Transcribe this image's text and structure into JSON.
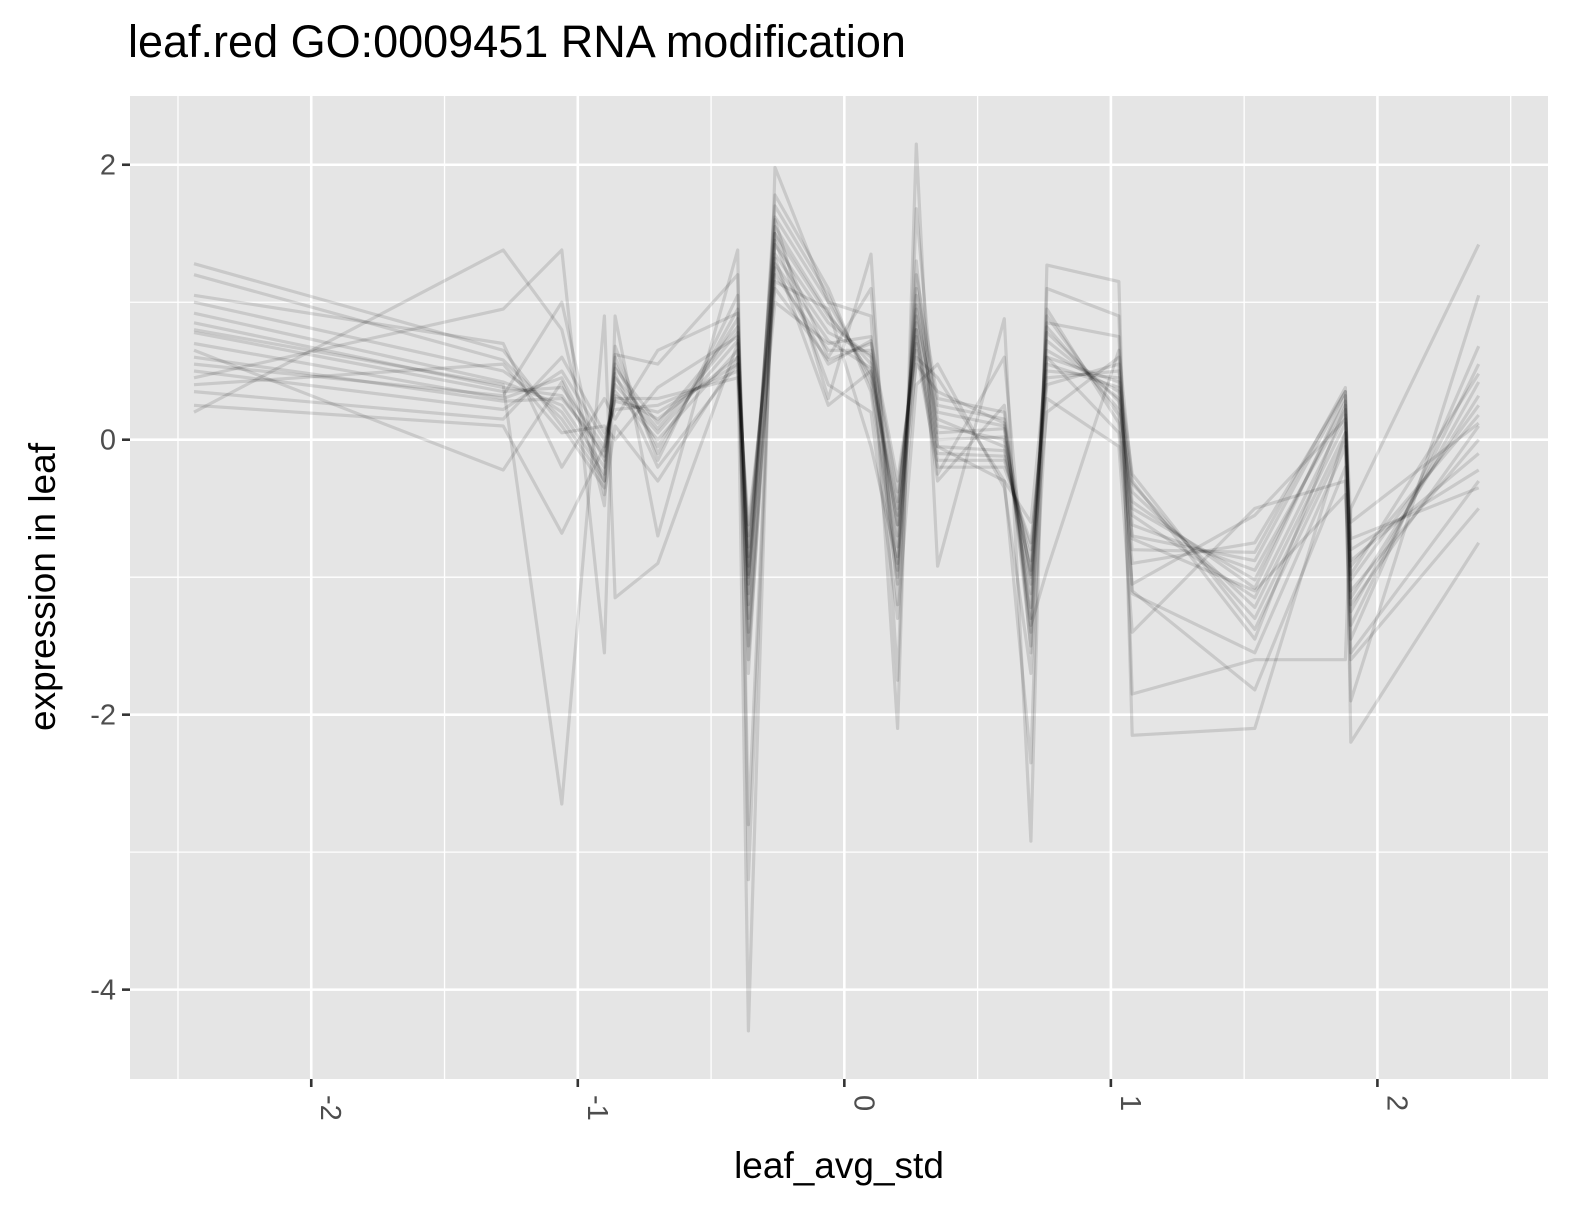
{
  "chart_data": {
    "type": "line",
    "title": "leaf.red GO:0009451 RNA modification",
    "xlabel": "leaf_avg_std",
    "ylabel": "expression in leaf",
    "xlim": [
      -2.68,
      2.64
    ],
    "ylim": [
      -4.65,
      2.5
    ],
    "x_ticks": [
      -2,
      -1,
      0,
      1,
      2
    ],
    "x_tick_labels": [
      "-2",
      "-1",
      "0",
      "1",
      "2"
    ],
    "y_ticks": [
      2,
      0,
      -2,
      -4
    ],
    "y_tick_labels": [
      "2",
      "0",
      "-2",
      "-4"
    ],
    "grid": true,
    "panel_background": "#e5e5e5",
    "grid_color": "#ffffff",
    "line_color": "#000000",
    "line_alpha": 0.12,
    "x": [
      -2.44,
      -1.28,
      -1.06,
      -0.9,
      -0.86,
      -0.7,
      -0.4,
      -0.36,
      -0.26,
      -0.06,
      0.1,
      0.2,
      0.27,
      0.35,
      0.6,
      0.7,
      0.76,
      1.03,
      1.08,
      1.54,
      1.88,
      1.9,
      2.38
    ],
    "series": [
      {
        "values": [
          0.85,
          0.38,
          0.32,
          -0.12,
          0.45,
          0.08,
          0.78,
          -0.98,
          1.5,
          0.9,
          0.55,
          -0.62,
          0.95,
          0.1,
          0.0,
          -1.12,
          0.72,
          0.3,
          -0.5,
          -1.02,
          0.28,
          -1.02,
          0.25
        ]
      },
      {
        "values": [
          0.92,
          0.42,
          0.25,
          -0.2,
          0.52,
          0.12,
          0.82,
          -1.05,
          1.42,
          0.85,
          0.6,
          -0.78,
          0.98,
          0.05,
          0.08,
          -1.22,
          0.65,
          0.35,
          -0.62,
          -0.95,
          0.22,
          -1.15,
          0.32
        ]
      },
      {
        "values": [
          0.78,
          0.35,
          0.38,
          -0.05,
          0.4,
          0.05,
          0.72,
          -0.92,
          1.55,
          0.92,
          0.48,
          -0.55,
          0.9,
          0.15,
          -0.05,
          -1.05,
          0.78,
          0.28,
          -0.45,
          -1.08,
          0.32,
          -0.92,
          0.18
        ]
      },
      {
        "values": [
          0.7,
          0.3,
          0.45,
          -0.15,
          0.35,
          0.0,
          0.65,
          -0.85,
          1.35,
          0.78,
          0.62,
          -0.7,
          0.85,
          0.0,
          0.02,
          -0.98,
          0.6,
          0.42,
          -0.55,
          -1.15,
          0.18,
          -1.1,
          0.0
        ]
      },
      {
        "values": [
          1.0,
          0.5,
          0.2,
          -0.25,
          0.55,
          -0.05,
          0.88,
          -1.12,
          1.62,
          1.0,
          0.45,
          -0.85,
          1.05,
          0.2,
          0.1,
          -1.3,
          0.82,
          0.22,
          -0.7,
          -0.88,
          0.35,
          -1.25,
          0.42
        ]
      },
      {
        "values": [
          0.6,
          0.28,
          0.3,
          -0.08,
          0.32,
          0.15,
          0.6,
          -0.78,
          1.28,
          0.72,
          0.52,
          -0.5,
          0.8,
          -0.05,
          -0.08,
          -0.95,
          0.55,
          0.38,
          -0.38,
          -1.22,
          0.12,
          -0.88,
          -0.1
        ]
      },
      {
        "values": [
          1.2,
          0.58,
          0.15,
          -0.3,
          0.6,
          -0.1,
          0.95,
          -1.2,
          1.7,
          1.05,
          0.4,
          -0.95,
          1.1,
          0.25,
          0.15,
          -1.4,
          0.9,
          0.18,
          -0.8,
          -0.82,
          0.38,
          -1.35,
          0.55
        ]
      },
      {
        "values": [
          0.5,
          0.22,
          0.5,
          0.0,
          0.28,
          0.2,
          0.55,
          -0.7,
          1.2,
          0.65,
          0.65,
          -0.45,
          0.75,
          -0.1,
          -0.12,
          -0.88,
          0.5,
          0.45,
          -0.32,
          -1.3,
          0.05,
          -0.8,
          -0.22
        ]
      },
      {
        "values": [
          0.35,
          0.15,
          0.6,
          0.05,
          0.22,
          0.25,
          0.5,
          -0.62,
          1.1,
          0.58,
          0.7,
          -0.38,
          0.7,
          -0.15,
          -0.15,
          -0.8,
          0.45,
          0.5,
          -0.25,
          -1.38,
          0.0,
          -0.72,
          -0.35
        ]
      },
      {
        "values": [
          1.28,
          0.65,
          0.1,
          -0.35,
          0.68,
          -0.15,
          1.05,
          -1.3,
          1.78,
          1.1,
          0.35,
          -1.05,
          1.2,
          0.3,
          0.2,
          -1.5,
          0.95,
          0.12,
          -0.9,
          -0.75,
          0.35,
          -1.45,
          0.68
        ]
      },
      {
        "values": [
          0.25,
          0.1,
          -0.68,
          -0.05,
          0.3,
          0.3,
          0.45,
          -1.6,
          1.25,
          0.55,
          0.72,
          -0.3,
          0.65,
          -0.2,
          -0.2,
          -0.75,
          0.4,
          0.55,
          -1.12,
          -1.55,
          -0.05,
          -1.6,
          -0.5
        ]
      },
      {
        "values": [
          0.8,
          0.4,
          -2.65,
          0.9,
          -1.15,
          -0.9,
          0.7,
          -4.3,
          1.98,
          1.0,
          0.9,
          -2.1,
          2.15,
          -0.92,
          0.88,
          -2.92,
          1.27,
          1.15,
          -2.15,
          -2.1,
          0.05,
          -2.2,
          -0.75
        ]
      },
      {
        "values": [
          0.45,
          0.95,
          1.38,
          -1.55,
          0.9,
          -0.7,
          1.38,
          -3.2,
          1.6,
          0.3,
          1.35,
          -1.75,
          1.68,
          -0.05,
          -0.3,
          -2.35,
          1.1,
          0.9,
          -1.85,
          -1.6,
          -1.6,
          -0.5,
          1.42
        ]
      },
      {
        "values": [
          0.2,
          1.38,
          0.8,
          -0.48,
          0.62,
          0.55,
          1.2,
          -2.8,
          1.5,
          0.6,
          1.1,
          -1.2,
          1.3,
          -0.25,
          0.6,
          -1.55,
          0.85,
          0.75,
          -1.1,
          -1.82,
          -0.2,
          -1.9,
          1.05
        ]
      },
      {
        "values": [
          1.05,
          0.7,
          -0.2,
          0.3,
          0.15,
          0.65,
          0.92,
          -1.7,
          1.45,
          0.4,
          0.2,
          -1.3,
          0.4,
          0.55,
          -0.35,
          -1.7,
          0.3,
          -0.05,
          -1.4,
          -0.5,
          -0.3,
          -1.55,
          -0.3
        ]
      },
      {
        "values": [
          0.55,
          0.32,
          1.0,
          -0.4,
          0.1,
          -0.3,
          0.6,
          -1.4,
          1.15,
          0.95,
          -0.05,
          -0.9,
          0.8,
          -0.3,
          0.25,
          -1.35,
          -0.95,
          0.65,
          -0.3,
          -1.45,
          0.25,
          -0.6,
          0.12
        ]
      },
      {
        "values": [
          0.4,
          0.55,
          0.05,
          0.1,
          0.0,
          0.38,
          0.75,
          -1.5,
          1.32,
          0.25,
          0.5,
          -0.62,
          0.55,
          0.35,
          0.12,
          -1.0,
          0.2,
          0.6,
          -0.72,
          -1.1,
          -0.4,
          -0.98,
          0.48
        ]
      },
      {
        "values": [
          0.65,
          -0.22,
          0.42,
          -0.3,
          0.48,
          -0.2,
          0.55,
          -1.0,
          1.0,
          0.7,
          0.75,
          -1.0,
          0.6,
          0.45,
          -0.3,
          -0.6,
          0.6,
          0.05,
          -1.05,
          -0.55,
          0.15,
          -1.2,
          0.1
        ]
      }
    ]
  }
}
